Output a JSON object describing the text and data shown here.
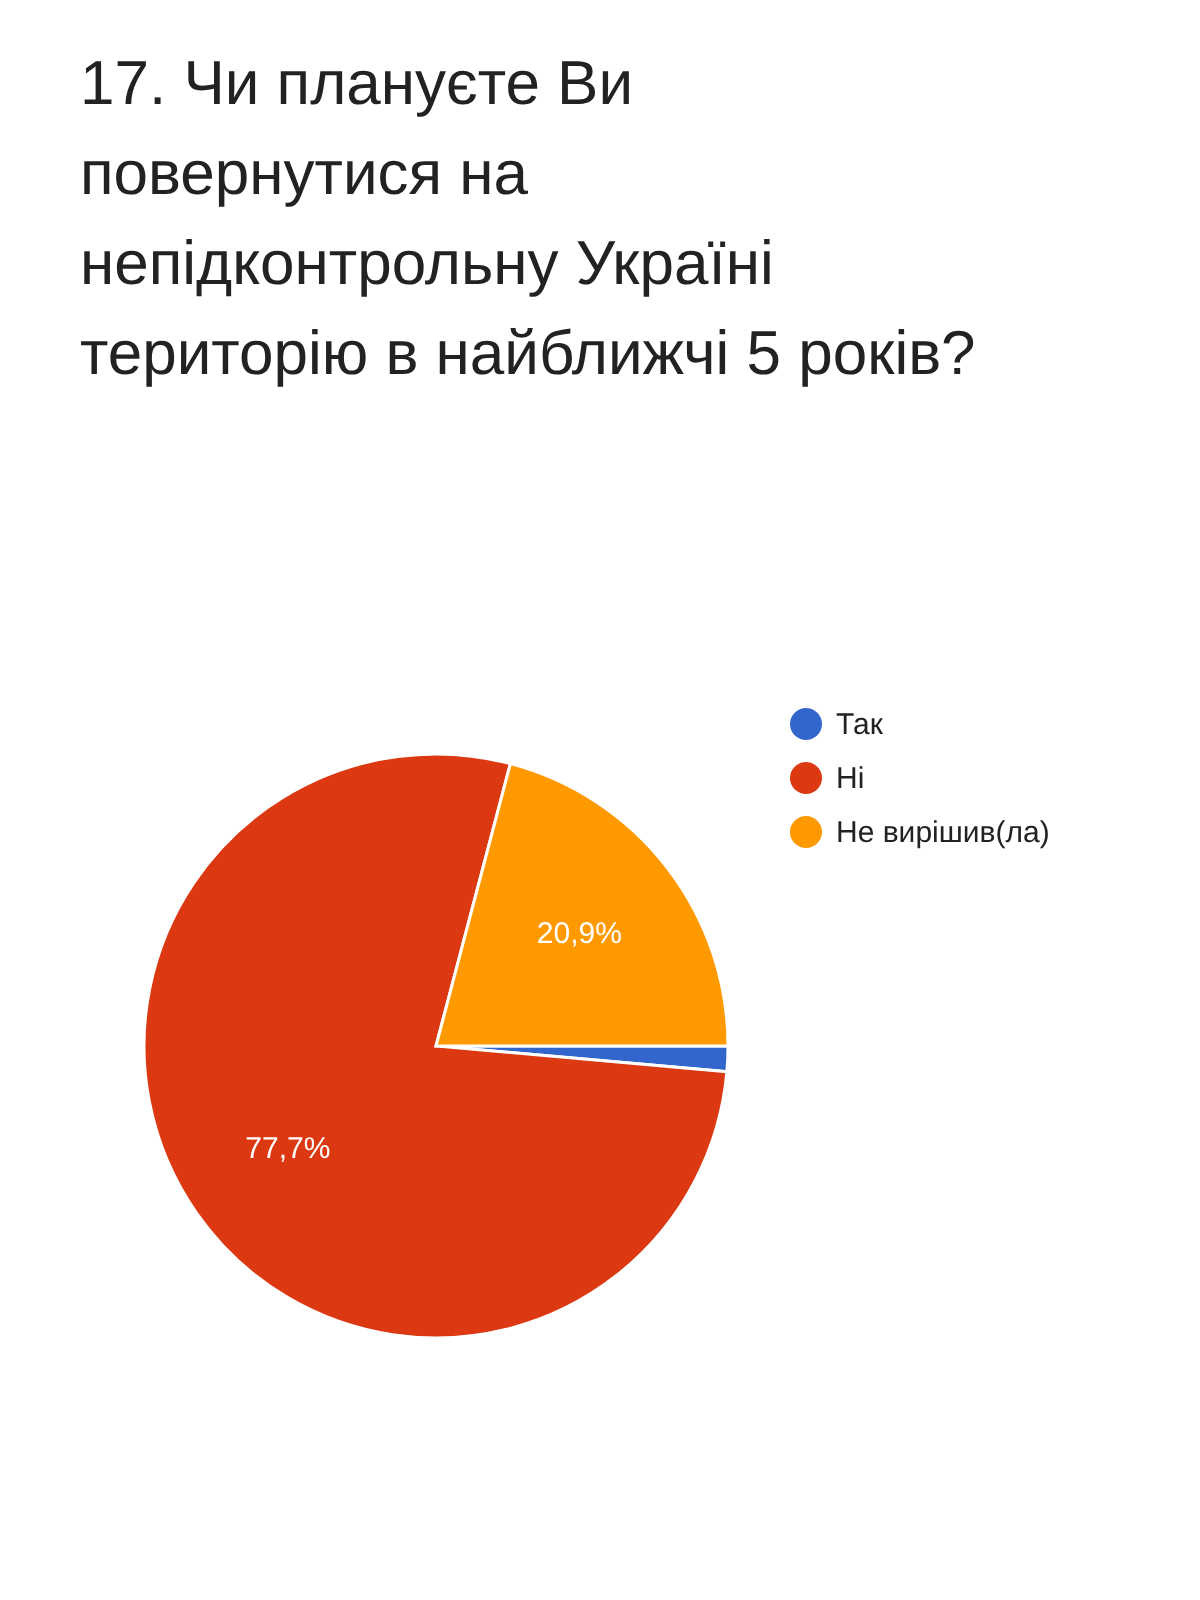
{
  "chart_data": {
    "type": "pie",
    "title": "17. Чи плануєте Ви повернутися на непідконтрольну Україні територію в найближчі 5 років?",
    "categories": [
      "Так",
      "Ні",
      "Не вирішив(ла)"
    ],
    "values": [
      1.4,
      77.7,
      20.9
    ],
    "colors": [
      "#3366cc",
      "#dc3912",
      "#ff9900"
    ],
    "value_labels": [
      null,
      "77,7%",
      "20,9%"
    ],
    "legend": "right"
  }
}
